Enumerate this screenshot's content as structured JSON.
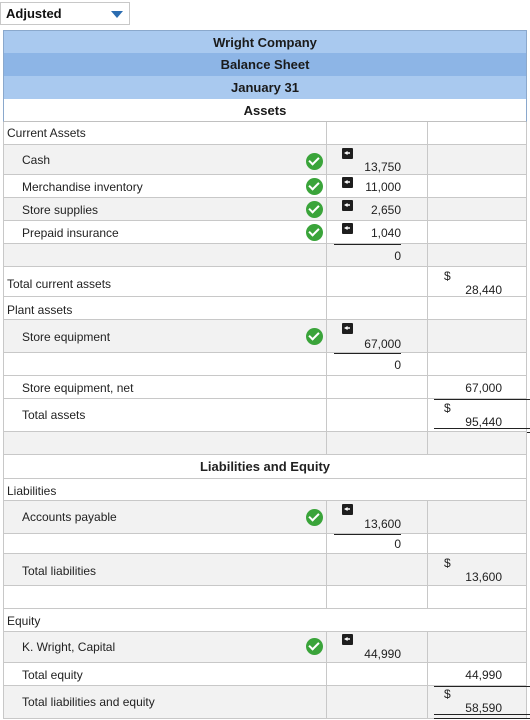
{
  "dropdown": {
    "value": "Adjusted"
  },
  "header": {
    "company": "Wright Company",
    "statement": "Balance Sheet",
    "date": "January 31",
    "section_assets": "Assets"
  },
  "assets": {
    "current_label": "Current Assets",
    "cash": {
      "label": "Cash",
      "value": "13,750"
    },
    "merch": {
      "label": "Merchandise inventory",
      "value": "11,000"
    },
    "supplies": {
      "label": "Store supplies",
      "value": "2,650"
    },
    "prepaid": {
      "label": "Prepaid insurance",
      "value": "1,040"
    },
    "blank_value": "0",
    "total_current": {
      "label": "Total current assets",
      "dollar": "$",
      "value": "28,440"
    },
    "plant_label": "Plant assets",
    "equipment": {
      "label": "Store equipment",
      "value": "67,000"
    },
    "blank_value2": "0",
    "equipment_net": {
      "label": "Store equipment, net",
      "value": "67,000"
    },
    "total_assets": {
      "label": "Total assets",
      "dollar": "$",
      "value": "95,440"
    }
  },
  "liab_equity": {
    "section": "Liabilities and Equity",
    "liabilities_label": "Liabilities",
    "ap": {
      "label": "Accounts payable",
      "value": "13,600"
    },
    "blank_value": "0",
    "total_liabilities": {
      "label": "Total liabilities",
      "dollar": "$",
      "value": "13,600"
    },
    "equity_label": "Equity",
    "capital": {
      "label": "K. Wright, Capital",
      "value": "44,990"
    },
    "total_equity": {
      "label": "Total equity",
      "value": "44,990"
    },
    "total_le": {
      "label": "Total liabilities and equity",
      "dollar": "$",
      "value": "58,590"
    }
  },
  "colors": {
    "header_bg": "#a9c9ef",
    "check": "#3aa43a"
  },
  "icons": {
    "check": "check-circle-icon",
    "flag": "flag-icon"
  }
}
